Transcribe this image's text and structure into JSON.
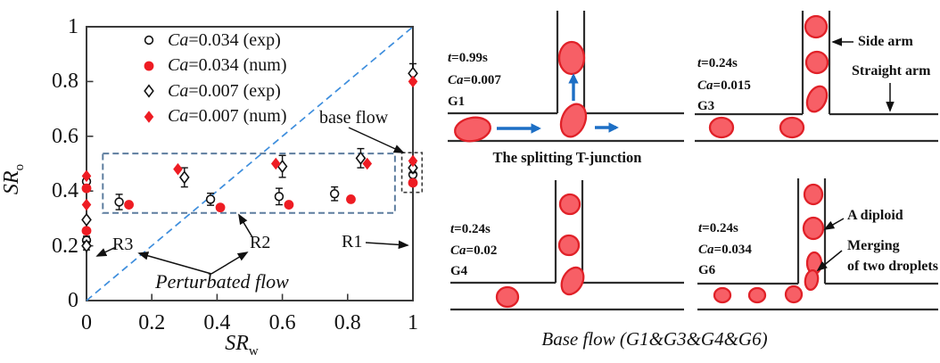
{
  "chart": {
    "ylabel_main": "SR",
    "ylabel_sub": "o",
    "xlabel_main": "SR",
    "xlabel_sub": "w",
    "x_ticks": [
      "0",
      "0.2",
      "0.4",
      "0.6",
      "0.8",
      "1"
    ],
    "y_ticks": [
      "0",
      "0.2",
      "0.4",
      "0.6",
      "0.8",
      "1"
    ],
    "annotations": {
      "base_flow": "base flow",
      "r1": "R1",
      "r2": "R2",
      "r3": "R3",
      "perturbated": "Perturbated flow"
    }
  },
  "chart_data": {
    "type": "scatter",
    "title": "",
    "xlabel": "SR_w",
    "ylabel": "SR_o",
    "xlim": [
      0,
      1
    ],
    "ylim": [
      0,
      1
    ],
    "grid": false,
    "legend_position": "upper-left-inside",
    "identity_line": {
      "style": "dashed",
      "from": [
        0,
        0
      ],
      "to": [
        1,
        1
      ]
    },
    "colors": {
      "red": "#ee1c23",
      "blue_dash": "#3e8edd",
      "region_box": "#5d7d9f",
      "base_box": "#3a3a3a"
    },
    "series": [
      {
        "name": "Ca=0.034 (exp)",
        "marker": "open-circle",
        "color": "#111111",
        "points": [
          [
            0,
            0.435,
            0.015
          ],
          [
            0,
            0.22,
            0.015
          ],
          [
            0.1,
            0.36,
            0.028
          ],
          [
            0.38,
            0.37,
            0.022
          ],
          [
            0.59,
            0.38,
            0.03
          ],
          [
            0.76,
            0.39,
            0.025
          ],
          [
            1,
            0.46,
            0.018
          ]
        ]
      },
      {
        "name": "Ca=0.034 (num)",
        "marker": "filled-circle",
        "color": "#ee1c23",
        "points": [
          [
            0,
            0.41,
            0
          ],
          [
            0,
            0.255,
            0
          ],
          [
            0.13,
            0.35,
            0
          ],
          [
            0.41,
            0.34,
            0
          ],
          [
            0.62,
            0.35,
            0
          ],
          [
            0.81,
            0.37,
            0
          ],
          [
            1,
            0.43,
            0
          ]
        ]
      },
      {
        "name": "Ca=0.007 (exp)",
        "marker": "open-diamond",
        "color": "#111111",
        "points": [
          [
            0,
            0.295,
            0
          ],
          [
            0,
            0.2,
            0.015
          ],
          [
            0.3,
            0.45,
            0.035
          ],
          [
            0.6,
            0.49,
            0.04
          ],
          [
            0.84,
            0.52,
            0.035
          ],
          [
            1,
            0.485,
            0.018
          ],
          [
            1,
            0.83,
            0.035
          ]
        ]
      },
      {
        "name": "Ca=0.007 (num)",
        "marker": "filled-diamond",
        "color": "#ee1c23",
        "points": [
          [
            0,
            0.455,
            0
          ],
          [
            0,
            0.35,
            0
          ],
          [
            0.28,
            0.48,
            0
          ],
          [
            0.58,
            0.5,
            0
          ],
          [
            0.86,
            0.5,
            0
          ],
          [
            1,
            0.51,
            0
          ],
          [
            1,
            0.8,
            0
          ]
        ]
      }
    ],
    "regions": {
      "perturbated_rect": {
        "x0": 0.05,
        "y0": 0.32,
        "x1": 0.945,
        "y1": 0.537
      },
      "base_flow_rect": {
        "x0": 0.966,
        "y0": 0.395,
        "x1": 1.028,
        "y1": 0.54
      }
    }
  },
  "panels": [
    {
      "time": "t=0.99s",
      "ca": "Ca=0.007",
      "tag": "G1"
    },
    {
      "time": "t=0.24s",
      "ca": "Ca=0.015",
      "tag": "G3"
    },
    {
      "time": "t=0.24s",
      "ca": "Ca=0.02",
      "tag": "G4"
    },
    {
      "time": "t=0.24s",
      "ca": "Ca=0.034",
      "tag": "G6"
    }
  ],
  "panel_labels": {
    "side_arm": "Side arm",
    "straight_arm": "Straight arm",
    "diploid": "A diploid",
    "merging_1": "Merging",
    "merging_2": "of two droplets"
  },
  "captions": {
    "splitting": "The splitting T-junction",
    "base_flow": "Base flow (G1&G3&G4&G6)"
  }
}
